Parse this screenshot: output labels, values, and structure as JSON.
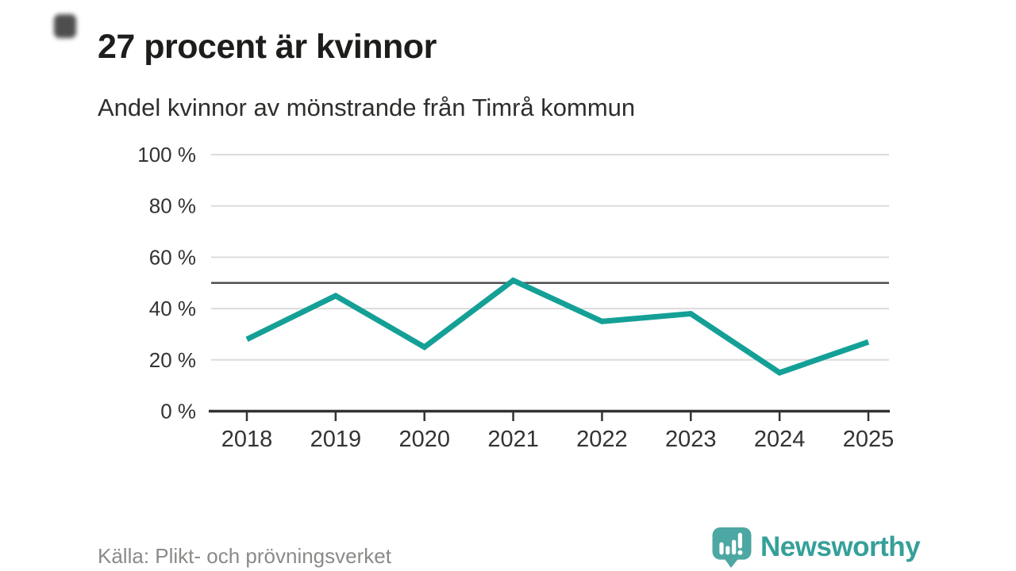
{
  "header": {
    "title": "27 procent är kvinnor",
    "subtitle": "Andel kvinnor av mönstrande från Timrå kommun"
  },
  "footer": {
    "source": "Källa: Plikt- och prövningsverket",
    "brand_name": "Newsworthy",
    "brand_logo_icon": "speech-bubble-bar-chart-exclamation"
  },
  "colors": {
    "accent": "#14a096",
    "grid": "#dcdcdc",
    "reference": "#4f4f4f",
    "axis": "#333333",
    "tick_text": "#333333",
    "title": "#1d1d1b",
    "subtitle": "#2e2e2c",
    "source": "#8a8a88",
    "brand": "#35a099",
    "brand_icon": "#4da7a2"
  },
  "chart_data": {
    "type": "line",
    "title": "27 procent är kvinnor",
    "subtitle": "Andel kvinnor av mönstrande från Timrå kommun",
    "x": [
      2018,
      2019,
      2020,
      2021,
      2022,
      2023,
      2024,
      2025
    ],
    "series": [
      {
        "name": "Andel kvinnor av mönstrande",
        "values": [
          28,
          45,
          25,
          51,
          35,
          38,
          15,
          27
        ]
      }
    ],
    "unit": "%",
    "ylim": [
      0,
      100
    ],
    "yticks": [
      0,
      20,
      40,
      60,
      80,
      100
    ],
    "ytick_suffix": " %",
    "reference_line": 50,
    "grid": true,
    "legend": false,
    "xlabel": "",
    "ylabel": ""
  }
}
